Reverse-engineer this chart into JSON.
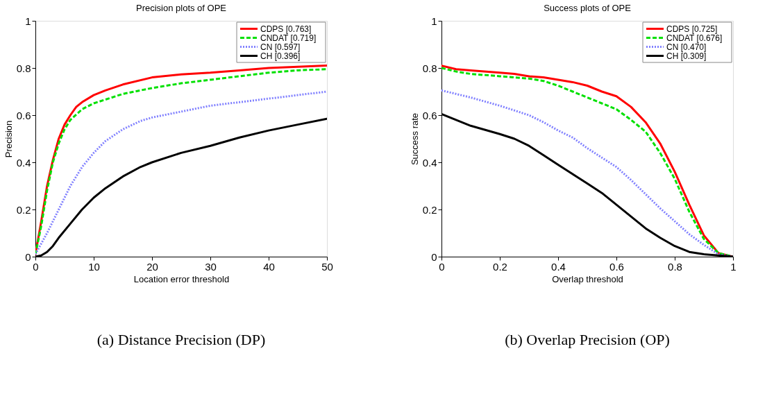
{
  "chart_data": [
    {
      "type": "line",
      "title": "Precision plots of OPE",
      "xlabel": "Location error threshold",
      "ylabel": "Precision",
      "xlim": [
        0,
        50
      ],
      "xticks": [
        0,
        10,
        20,
        30,
        40,
        50
      ],
      "ylim": [
        0,
        1
      ],
      "yticks": [
        0,
        0.2,
        0.4,
        0.6,
        0.8,
        1
      ],
      "grid": false,
      "legend": "top right",
      "annotations": [
        "(a) Distance Precision (DP)"
      ],
      "series": [
        {
          "name": "CDPS [0.763]",
          "color": "#ff0000",
          "line_style": "solid",
          "x": [
            0,
            1,
            2,
            3,
            4,
            5,
            6,
            7,
            8,
            10,
            12,
            15,
            20,
            25,
            30,
            35,
            40,
            45,
            50
          ],
          "values": [
            0.01,
            0.15,
            0.3,
            0.41,
            0.5,
            0.56,
            0.6,
            0.635,
            0.655,
            0.685,
            0.705,
            0.73,
            0.76,
            0.773,
            0.78,
            0.79,
            0.8,
            0.805,
            0.81
          ]
        },
        {
          "name": "CNDAT [0.719]",
          "color": "#00e000",
          "line_style": "dashed",
          "x": [
            0,
            1,
            2,
            3,
            4,
            5,
            6,
            8,
            10,
            15,
            20,
            25,
            30,
            35,
            40,
            45,
            50
          ],
          "values": [
            0.01,
            0.13,
            0.28,
            0.4,
            0.48,
            0.54,
            0.58,
            0.625,
            0.65,
            0.69,
            0.715,
            0.735,
            0.75,
            0.765,
            0.78,
            0.79,
            0.795
          ]
        },
        {
          "name": "CN [0.597]",
          "color": "#8080ff",
          "line_style": "dotted",
          "x": [
            0,
            2,
            4,
            6,
            8,
            10,
            12,
            15,
            18,
            20,
            25,
            30,
            35,
            40,
            45,
            50
          ],
          "values": [
            0.01,
            0.1,
            0.2,
            0.3,
            0.38,
            0.44,
            0.49,
            0.54,
            0.575,
            0.59,
            0.615,
            0.64,
            0.655,
            0.67,
            0.685,
            0.7
          ]
        },
        {
          "name": "CH [0.396]",
          "color": "#000000",
          "line_style": "solid",
          "x": [
            0,
            1,
            2,
            3,
            4,
            6,
            8,
            10,
            12,
            15,
            18,
            20,
            25,
            30,
            35,
            40,
            45,
            50
          ],
          "values": [
            0,
            0.005,
            0.02,
            0.045,
            0.08,
            0.14,
            0.2,
            0.25,
            0.29,
            0.34,
            0.38,
            0.4,
            0.44,
            0.47,
            0.505,
            0.535,
            0.56,
            0.585
          ]
        }
      ]
    },
    {
      "type": "line",
      "title": "Success plots of OPE",
      "xlabel": "Overlap threshold",
      "ylabel": "Success rate",
      "xlim": [
        0,
        1
      ],
      "xticks": [
        0,
        0.2,
        0.4,
        0.6,
        0.8,
        1
      ],
      "ylim": [
        0,
        1
      ],
      "yticks": [
        0,
        0.2,
        0.4,
        0.6,
        0.8,
        1
      ],
      "grid": false,
      "legend": "top right",
      "annotations": [
        "(b) Overlap Precision (OP)"
      ],
      "series": [
        {
          "name": "CDPS [0.725]",
          "color": "#ff0000",
          "line_style": "solid",
          "x": [
            0,
            0.05,
            0.1,
            0.2,
            0.25,
            0.3,
            0.35,
            0.4,
            0.45,
            0.5,
            0.55,
            0.6,
            0.65,
            0.7,
            0.75,
            0.8,
            0.85,
            0.9,
            0.95,
            1
          ],
          "values": [
            0.81,
            0.795,
            0.79,
            0.78,
            0.775,
            0.765,
            0.76,
            0.75,
            0.74,
            0.725,
            0.7,
            0.68,
            0.635,
            0.57,
            0.48,
            0.36,
            0.22,
            0.09,
            0.015,
            0
          ]
        },
        {
          "name": "CNDAT [0.676]",
          "color": "#00e000",
          "line_style": "dashed",
          "x": [
            0,
            0.05,
            0.1,
            0.2,
            0.3,
            0.35,
            0.4,
            0.45,
            0.5,
            0.55,
            0.6,
            0.65,
            0.7,
            0.75,
            0.8,
            0.85,
            0.9,
            0.95,
            1
          ],
          "values": [
            0.8,
            0.785,
            0.775,
            0.765,
            0.755,
            0.745,
            0.725,
            0.7,
            0.675,
            0.65,
            0.625,
            0.58,
            0.53,
            0.44,
            0.33,
            0.19,
            0.075,
            0.015,
            0
          ]
        },
        {
          "name": "CN [0.470]",
          "color": "#8080ff",
          "line_style": "dotted",
          "x": [
            0,
            0.1,
            0.2,
            0.3,
            0.35,
            0.4,
            0.45,
            0.5,
            0.55,
            0.6,
            0.65,
            0.7,
            0.75,
            0.8,
            0.85,
            0.9,
            0.95,
            1
          ],
          "values": [
            0.705,
            0.675,
            0.64,
            0.6,
            0.57,
            0.535,
            0.505,
            0.46,
            0.42,
            0.38,
            0.325,
            0.265,
            0.205,
            0.15,
            0.095,
            0.05,
            0.01,
            0
          ]
        },
        {
          "name": "CH [0.309]",
          "color": "#000000",
          "line_style": "solid",
          "x": [
            0,
            0.05,
            0.1,
            0.2,
            0.25,
            0.3,
            0.35,
            0.4,
            0.45,
            0.5,
            0.55,
            0.6,
            0.65,
            0.7,
            0.75,
            0.8,
            0.85,
            0.9,
            0.95,
            1
          ],
          "values": [
            0.605,
            0.58,
            0.555,
            0.52,
            0.5,
            0.47,
            0.43,
            0.39,
            0.35,
            0.31,
            0.27,
            0.22,
            0.17,
            0.12,
            0.08,
            0.045,
            0.02,
            0.01,
            0.005,
            0
          ]
        }
      ]
    }
  ]
}
